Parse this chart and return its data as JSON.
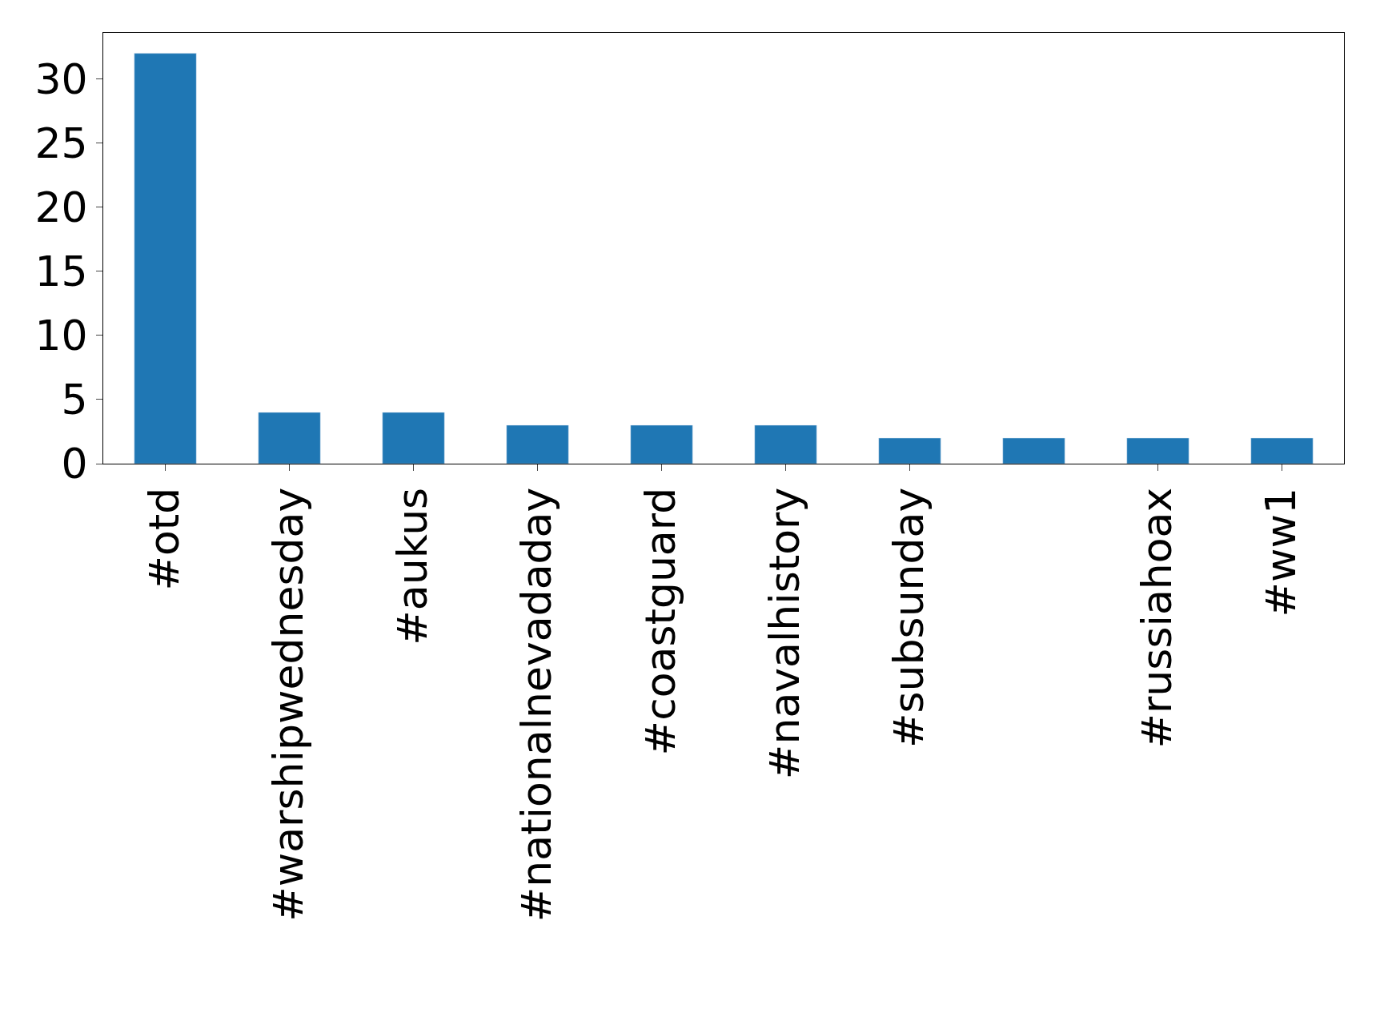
{
  "chart_data": {
    "type": "bar",
    "categories": [
      "#otd",
      "#warshipwednesday",
      "#aukus",
      "#nationalnevadaday",
      "#coastguard",
      "#navalhistory",
      "#subsunday",
      null,
      "#russiahoax",
      "#ww1"
    ],
    "values": [
      32,
      4,
      4,
      3,
      3,
      3,
      2,
      2,
      2,
      2
    ],
    "color": "#1f77b4",
    "ylim": [
      0,
      33.6
    ],
    "yticks": [
      0,
      5,
      10,
      15,
      20,
      25,
      30
    ],
    "legend": false
  }
}
